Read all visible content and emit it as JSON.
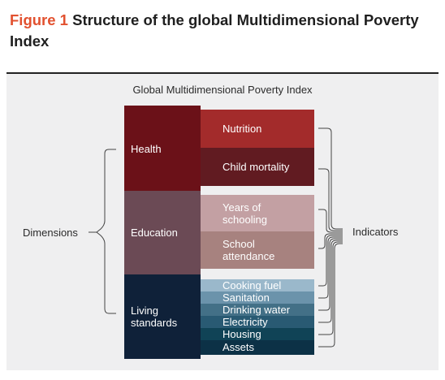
{
  "figure": {
    "label": "Figure 1",
    "title": "Structure of the global Multidimensional Poverty Index"
  },
  "diagram": {
    "title": "Global Multidimensional Poverty Index",
    "left_label": "Dimensions",
    "right_label": "Indicators",
    "dimensions": [
      {
        "name": "Health",
        "color": "#6b1118",
        "indicators": [
          {
            "label": "Nutrition",
            "color": "#a32b2b"
          },
          {
            "label": "Child mortality",
            "color": "#611b21"
          }
        ]
      },
      {
        "name": "Education",
        "color": "#6b4a55",
        "indicators": [
          {
            "label": "Years of schooling",
            "line1": "Years of",
            "line2": "schooling",
            "color": "#c3a0a3"
          },
          {
            "label": "School attendance",
            "line1": "School",
            "line2": "attendance",
            "color": "#a7827f"
          }
        ]
      },
      {
        "name": "Living standards",
        "line1": "Living",
        "line2": "standards",
        "color": "#0f2139",
        "indicators": [
          {
            "label": "Cooking fuel",
            "color": "#9ab8cb"
          },
          {
            "label": "Sanitation",
            "color": "#6b93ab"
          },
          {
            "label": "Drinking water",
            "color": "#437087"
          },
          {
            "label": "Electricity",
            "color": "#295a73"
          },
          {
            "label": "Housing",
            "color": "#104356"
          },
          {
            "label": "Assets",
            "color": "#0c3146"
          }
        ]
      }
    ]
  }
}
